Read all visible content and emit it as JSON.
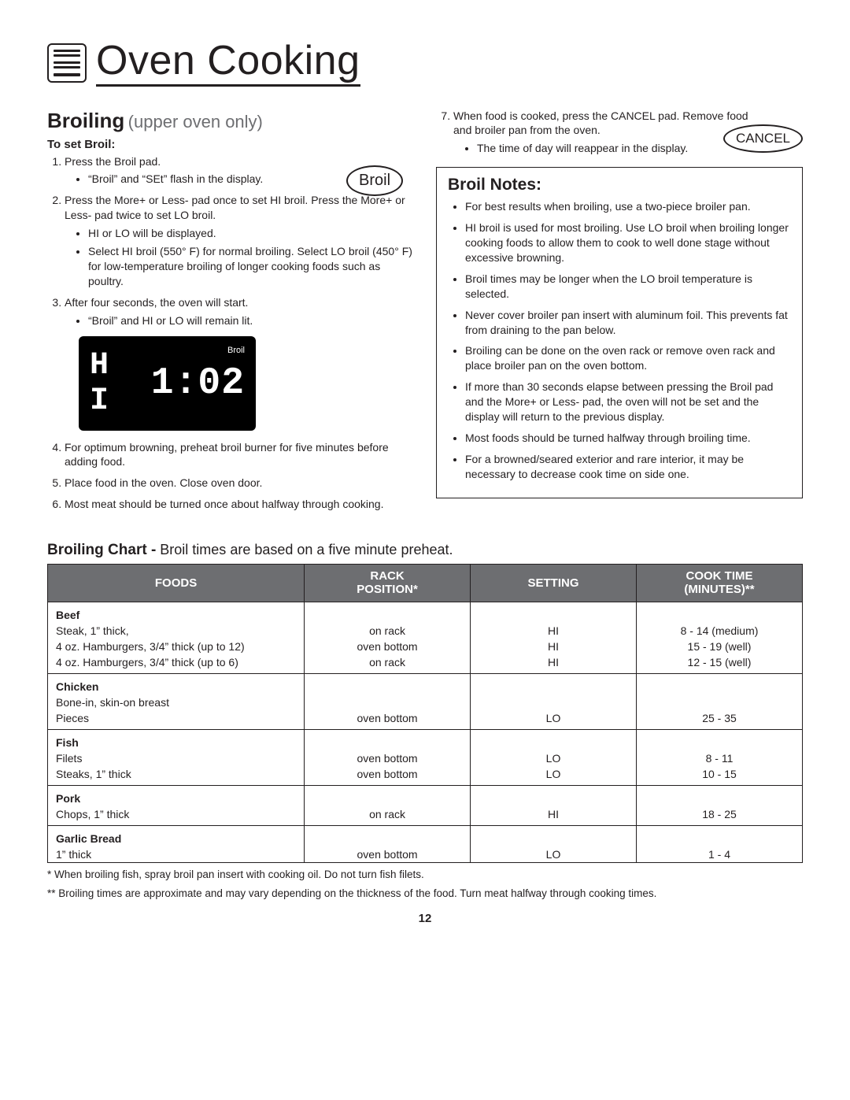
{
  "header": {
    "title": "Oven Cooking"
  },
  "broiling": {
    "title": "Broiling",
    "subtitle": "(upper oven only)",
    "to_set_label": "To set Broil:",
    "broil_pad_label": "Broil",
    "cancel_pad_label": "CANCEL",
    "steps_left": [
      {
        "text": "Press the Broil pad.",
        "bullets": [
          "“Broil” and “SEt” flash in the display."
        ]
      },
      {
        "text": "Press the More+ or Less- pad once to set HI broil. Press the More+ or Less- pad twice to set LO broil.",
        "bullets": [
          "HI or LO will be displayed.",
          "Select HI broil (550° F) for normal broiling. Select LO broil (450° F) for low-temperature broiling of longer cooking foods such as poultry."
        ]
      },
      {
        "text": "After four seconds, the oven will start.",
        "bullets": [
          "“Broil” and HI or LO will remain lit."
        ]
      }
    ],
    "display": {
      "hi": "H I",
      "time": "1:02",
      "label": "Broil",
      "bg_color": "#000000",
      "text_color": "#ffffff"
    },
    "steps_left_after": [
      {
        "text": "For optimum browning, preheat broil burner for five minutes before adding food."
      },
      {
        "text": "Place food in the oven.  Close oven door."
      },
      {
        "text": "Most meat should be turned once about halfway through cooking."
      }
    ],
    "step_right": {
      "text": "When food is cooked, press the CANCEL pad. Remove food and broiler pan from the oven.",
      "bullets": [
        "The time of day will reappear in the display."
      ]
    }
  },
  "broil_notes": {
    "title": "Broil Notes:",
    "items": [
      "For best results when broiling, use a two-piece broiler pan.",
      "HI broil is used for most broiling. Use LO broil when broiling longer cooking foods to allow them to cook to well done stage without excessive browning.",
      "Broil times may be longer when the LO broil temperature is selected.",
      "Never cover broiler pan insert with aluminum foil. This prevents fat from draining to the pan below.",
      "Broiling can be done on the oven rack or remove oven rack and place broiler pan on the oven bottom.",
      "If more than 30 seconds elapse between pressing the Broil pad and the More+ or Less- pad, the oven will not be set and the display will return to the previous display.",
      "Most foods should be turned halfway through broiling time.",
      "For a browned/seared exterior and rare interior, it may be necessary to decrease cook time on side one."
    ]
  },
  "chart": {
    "title_bold": "Broiling Chart -",
    "title_rest": " Broil times are based on a five minute preheat.",
    "columns": [
      "FOODS",
      "RACK POSITION*",
      "SETTING",
      "COOK TIME (MINUTES)**"
    ],
    "header_bg": "#6d6e71",
    "header_fg": "#ffffff",
    "groups": [
      {
        "category": "Beef",
        "rows": [
          {
            "food": "Steak, 1” thick,",
            "rack": "on rack",
            "setting": "HI",
            "time": "8 - 14 (medium)"
          },
          {
            "food": "4 oz. Hamburgers, 3/4” thick (up to 12)",
            "rack": "oven bottom",
            "setting": "HI",
            "time": "15 - 19 (well)"
          },
          {
            "food": "4 oz. Hamburgers, 3/4” thick (up to 6)",
            "rack": "on rack",
            "setting": "HI",
            "time": "12 - 15 (well)"
          }
        ]
      },
      {
        "category": "Chicken",
        "rows": [
          {
            "food": "Bone-in, skin-on breast",
            "rack": "",
            "setting": "",
            "time": ""
          },
          {
            "food": "Pieces",
            "rack": "oven bottom",
            "setting": "LO",
            "time": "25 - 35"
          }
        ]
      },
      {
        "category": "Fish",
        "rows": [
          {
            "food": "Filets",
            "rack": "oven bottom",
            "setting": "LO",
            "time": "8 - 11"
          },
          {
            "food": "Steaks, 1” thick",
            "rack": "oven bottom",
            "setting": "LO",
            "time": "10 - 15"
          }
        ]
      },
      {
        "category": "Pork",
        "rows": [
          {
            "food": "Chops, 1” thick",
            "rack": "on rack",
            "setting": "HI",
            "time": "18 - 25"
          }
        ]
      },
      {
        "category": "Garlic Bread",
        "rows": [
          {
            "food": "1” thick",
            "rack": "oven bottom",
            "setting": "LO",
            "time": "1 - 4"
          }
        ]
      }
    ],
    "footnote1": "*   When broiling fish, spray broil pan insert with cooking oil. Do not turn fish filets.",
    "footnote2": "** Broiling times are approximate and may vary depending on the thickness of the food. Turn meat halfway through cooking times.",
    "column_widths": [
      "34%",
      "22%",
      "22%",
      "22%"
    ]
  },
  "page_number": "12"
}
